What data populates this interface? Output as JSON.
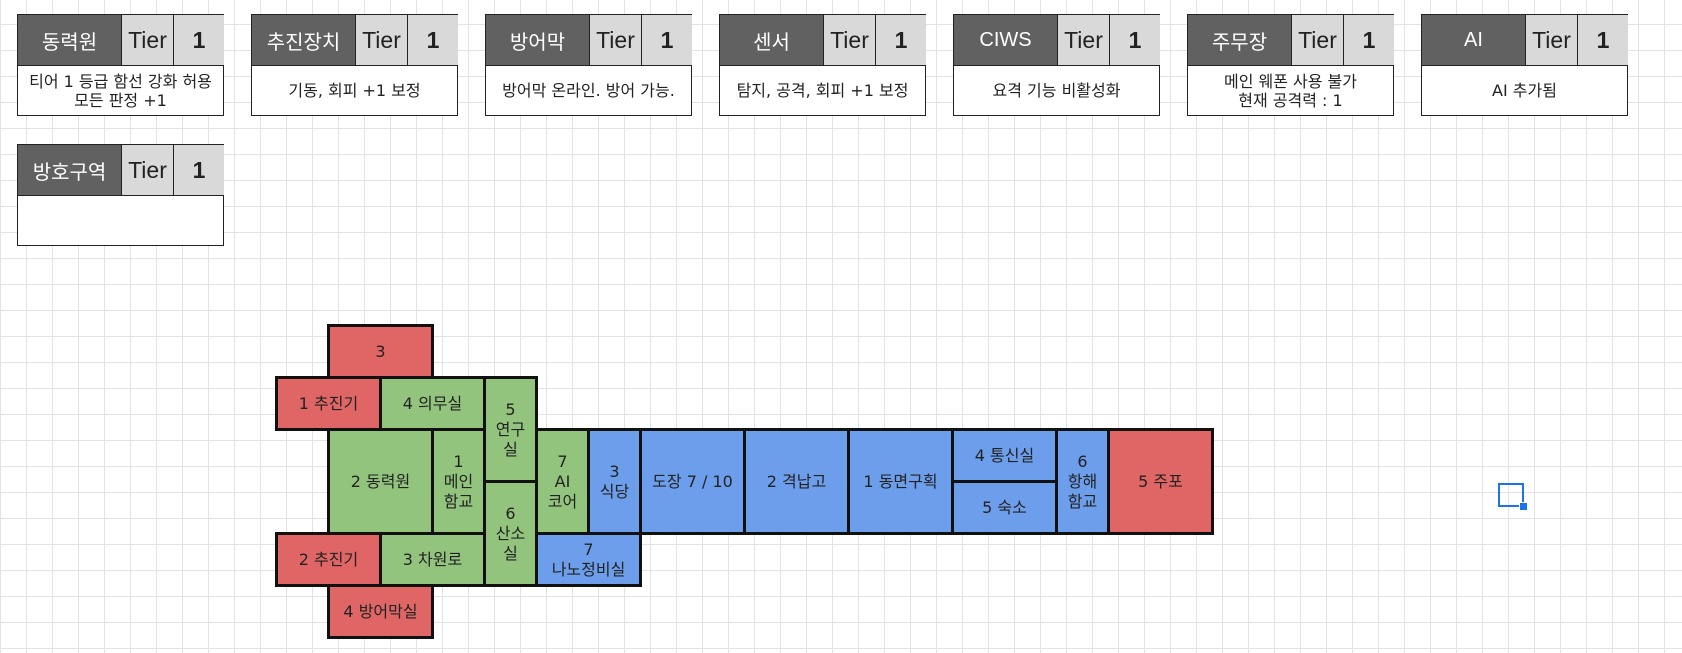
{
  "tier_label": "Tier",
  "cards": [
    {
      "name": "동력원",
      "tier": "1",
      "desc": "티어 1 등급 함선 강화 허용\n모든 판정 +1"
    },
    {
      "name": "추진장치",
      "tier": "1",
      "desc": "기동, 회피 +1 보정"
    },
    {
      "name": "방어막",
      "tier": "1",
      "desc": "방어막 온라인. 방어 가능."
    },
    {
      "name": "센서",
      "tier": "1",
      "desc": "탐지, 공격, 회피 +1 보정"
    },
    {
      "name": "CIWS",
      "tier": "1",
      "desc": "요격 기능 비활성화"
    },
    {
      "name": "주무장",
      "tier": "1",
      "desc": "메인 웨폰 사용 불가\n현재 공격력 : 1"
    },
    {
      "name": "AI",
      "tier": "1",
      "desc": "AI 추가됨"
    },
    {
      "name": "방호구역",
      "tier": "1",
      "desc": ""
    }
  ],
  "rooms": {
    "r3": "3",
    "thruster1": "1 추진기",
    "medbay": "4 의무실",
    "research": "5\n연구\n실",
    "power": "2 동력원",
    "bridge_main": "1\n메인\n함교",
    "ai_core": "7\nAI\n코어",
    "mess": "3\n식당",
    "dojo": "도장 7 / 10",
    "hangar": "2 격납고",
    "hibernation": "1 동면구획",
    "comms": "4 통신실",
    "quarters": "5 숙소",
    "nav_bridge": "6\n항해\n함교",
    "main_gun": "5 주포",
    "oxygen": "6\n산소\n실",
    "nano": "7\n나노정비실",
    "thruster2": "2 추진기",
    "dimension": "3 차원로",
    "shield_room": "4 방어막실"
  }
}
